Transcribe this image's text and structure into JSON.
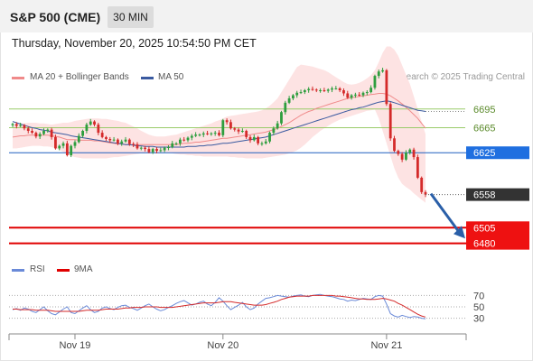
{
  "header": {
    "title": "S&P 500 (CME)",
    "timeframe": "30 MIN",
    "datetime": "Thursday, November 20, 2025 10:54:50 PM CET",
    "credit": "Research © 2025 Trading Central"
  },
  "legend": {
    "ma20_label": "MA 20 + Bollinger Bands",
    "ma50_label": "MA 50",
    "rsi_label": "RSI",
    "ma9_label": "9MA"
  },
  "colors": {
    "up": "#2e9e3e",
    "down": "#d42a2a",
    "ma20": "#f08a8a",
    "bollinger_fill": "#fde3e3",
    "ma50": "#3a5aa0",
    "support_line": "#e00000",
    "current_line": "#2060c0",
    "resistance_line": "#9acb6a",
    "rsi": "#6a8ad8",
    "rsi_ma": "#d42a2a"
  },
  "chart_data": [
    {
      "type": "candlestick",
      "ylim": [
        6465,
        6725
      ],
      "resistance_levels": [
        {
          "label": "6695",
          "value": 6695
        },
        {
          "label": "6665",
          "value": 6665
        }
      ],
      "current_level": {
        "label": "6625",
        "value": 6625
      },
      "last_price": {
        "label": "6558",
        "value": 6558
      },
      "support_levels": [
        {
          "label": "6505",
          "value": 6505
        },
        {
          "label": "6480",
          "value": 6480
        }
      ],
      "x_ticks": [
        "Nov 19",
        "Nov 20",
        "Nov 21"
      ],
      "close": [
        6671,
        6668,
        6669,
        6664,
        6660,
        6657,
        6651,
        6655,
        6660,
        6662,
        6650,
        6632,
        6636,
        6640,
        6621,
        6636,
        6642,
        6652,
        6660,
        6670,
        6675,
        6670,
        6657,
        6650,
        6647,
        6645,
        6646,
        6640,
        6643,
        6646,
        6639,
        6638,
        6632,
        6633,
        6631,
        6626,
        6631,
        6628,
        6629,
        6633,
        6634,
        6640,
        6640,
        6646,
        6645,
        6649,
        6652,
        6654,
        6654,
        6656,
        6655,
        6656,
        6657,
        6653,
        6677,
        6674,
        6664,
        6662,
        6659,
        6660,
        6650,
        6645,
        6650,
        6640,
        6640,
        6643,
        6657,
        6664,
        6672,
        6690,
        6705,
        6712,
        6717,
        6721,
        6722,
        6725,
        6727,
        6726,
        6725,
        6725,
        6724,
        6726,
        6728,
        6728,
        6725,
        6720,
        6713,
        6717,
        6718,
        6717,
        6721,
        6722,
        6729,
        6748,
        6755,
        6757,
        6703,
        6648,
        6628,
        6623,
        6614,
        6625,
        6630,
        6618,
        6585,
        6562,
        6558
      ],
      "ma20": [
        6650,
        6651,
        6652,
        6652,
        6653,
        6653,
        6653,
        6653,
        6653,
        6653,
        6652,
        6651,
        6650,
        6648,
        6646,
        6646,
        6646,
        6645,
        6645,
        6645,
        6645,
        6644,
        6644,
        6643,
        6642,
        6641,
        6640,
        6639,
        6639,
        6638,
        6638,
        6638,
        6638,
        6638,
        6638,
        6638,
        6638,
        6638,
        6638,
        6638,
        6638,
        6638,
        6638,
        6639,
        6640,
        6640,
        6641,
        6642,
        6642,
        6643,
        6644,
        6645,
        6646,
        6647,
        6648,
        6648,
        6649,
        6650,
        6651,
        6652,
        6653,
        6654,
        6655,
        6656,
        6657,
        6658,
        6660,
        6662,
        6664,
        6667,
        6670,
        6673,
        6677,
        6681,
        6685,
        6688,
        6691,
        6693,
        6696,
        6698,
        6700,
        6702,
        6704,
        6706,
        6708,
        6710,
        6712,
        6713,
        6714,
        6715,
        6716,
        6717,
        6718,
        6719,
        6720,
        6720,
        6719,
        6716,
        6712,
        6708,
        6703,
        6698,
        6692,
        6686,
        6680,
        6672,
        6664
      ],
      "bb_upper": [
        6670,
        6671,
        6672,
        6672,
        6673,
        6673,
        6673,
        6672,
        6672,
        6671,
        6670,
        6671,
        6672,
        6673,
        6673,
        6674,
        6676,
        6677,
        6678,
        6679,
        6680,
        6680,
        6680,
        6679,
        6679,
        6678,
        6677,
        6676,
        6674,
        6673,
        6670,
        6667,
        6664,
        6660,
        6657,
        6654,
        6652,
        6651,
        6651,
        6651,
        6652,
        6653,
        6654,
        6656,
        6658,
        6660,
        6662,
        6664,
        6666,
        6668,
        6670,
        6672,
        6675,
        6677,
        6680,
        6683,
        6684,
        6685,
        6686,
        6687,
        6688,
        6689,
        6690,
        6691,
        6693,
        6696,
        6700,
        6706,
        6712,
        6722,
        6732,
        6742,
        6752,
        6762,
        6766,
        6765,
        6764,
        6763,
        6761,
        6759,
        6757,
        6754,
        6750,
        6746,
        6742,
        6738,
        6735,
        6734,
        6735,
        6737,
        6740,
        6744,
        6749,
        6757,
        6770,
        6785,
        6795,
        6795,
        6790,
        6780,
        6765,
        6750,
        6735,
        6715,
        6695,
        6675,
        6655
      ],
      "bb_lower": [
        6632,
        6632,
        6633,
        6634,
        6635,
        6636,
        6636,
        6636,
        6635,
        6635,
        6634,
        6632,
        6630,
        6626,
        6623,
        6620,
        6618,
        6617,
        6616,
        6616,
        6616,
        6616,
        6616,
        6616,
        6616,
        6617,
        6618,
        6618,
        6619,
        6620,
        6621,
        6622,
        6623,
        6624,
        6624,
        6625,
        6625,
        6626,
        6626,
        6626,
        6625,
        6624,
        6623,
        6622,
        6622,
        6621,
        6621,
        6620,
        6620,
        6619,
        6619,
        6619,
        6619,
        6619,
        6619,
        6619,
        6618,
        6618,
        6617,
        6617,
        6616,
        6616,
        6616,
        6616,
        6616,
        6617,
        6618,
        6619,
        6620,
        6621,
        6622,
        6624,
        6626,
        6629,
        6633,
        6638,
        6644,
        6650,
        6655,
        6660,
        6664,
        6668,
        6672,
        6675,
        6678,
        6680,
        6682,
        6684,
        6686,
        6688,
        6690,
        6692,
        6693,
        6694,
        6680,
        6660,
        6640,
        6620,
        6600,
        6585,
        6575,
        6570,
        6566,
        6560,
        6555,
        6550,
        6545
      ],
      "ma50": [
        6675,
        6673,
        6671,
        6669,
        6667,
        6665,
        6664,
        6662,
        6661,
        6660,
        6658,
        6657,
        6656,
        6655,
        6654,
        6652,
        6651,
        6650,
        6649,
        6648,
        6647,
        6646,
        6645,
        6644,
        6643,
        6642,
        6641,
        6640,
        6639,
        6638,
        6638,
        6637,
        6636,
        6636,
        6635,
        6635,
        6635,
        6634,
        6634,
        6634,
        6634,
        6634,
        6634,
        6634,
        6634,
        6635,
        6635,
        6635,
        6636,
        6636,
        6637,
        6637,
        6638,
        6639,
        6640,
        6640,
        6641,
        6642,
        6643,
        6644,
        6645,
        6646,
        6647,
        6648,
        6649,
        6650,
        6652,
        6654,
        6656,
        6658,
        6660,
        6662,
        6664,
        6666,
        6668,
        6670,
        6672,
        6674,
        6676,
        6678,
        6680,
        6682,
        6684,
        6686,
        6688,
        6690,
        6692,
        6694,
        6695,
        6697,
        6698,
        6700,
        6702,
        6704,
        6706,
        6707,
        6708,
        6707,
        6705,
        6703,
        6701,
        6699,
        6697,
        6695,
        6693,
        6692,
        6691
      ]
    },
    {
      "type": "line",
      "ylim": [
        15,
        85
      ],
      "y_ticks": [
        30,
        50,
        70
      ],
      "series": [
        {
          "name": "RSI",
          "values": [
            45,
            47,
            44,
            48,
            46,
            42,
            40,
            45,
            50,
            43,
            38,
            36,
            41,
            46,
            50,
            40,
            38,
            43,
            48,
            52,
            45,
            40,
            42,
            48,
            50,
            47,
            45,
            49,
            52,
            53,
            49,
            47,
            44,
            48,
            52,
            55,
            50,
            46,
            43,
            45,
            49,
            52,
            56,
            59,
            61,
            57,
            53,
            55,
            58,
            60,
            55,
            52,
            58,
            66,
            60,
            52,
            45,
            49,
            53,
            58,
            50,
            45,
            48,
            55,
            60,
            65,
            66,
            68,
            70,
            69,
            68,
            67,
            69,
            70,
            71,
            69,
            68,
            70,
            71,
            72,
            70,
            69,
            68,
            66,
            64,
            63,
            60,
            62,
            61,
            63,
            65,
            64,
            63,
            68,
            70,
            69,
            55,
            38,
            34,
            32,
            35,
            33,
            31,
            33,
            32,
            30,
            29
          ]
        },
        {
          "name": "9MA",
          "values": [
            46,
            46,
            45,
            45,
            45,
            45,
            44,
            44,
            44,
            44,
            43,
            42,
            42,
            42,
            42,
            42,
            42,
            42,
            43,
            44,
            44,
            44,
            44,
            45,
            46,
            46,
            46,
            46,
            47,
            48,
            48,
            49,
            49,
            49,
            50,
            50,
            50,
            50,
            49,
            49,
            49,
            49,
            50,
            51,
            52,
            53,
            54,
            55,
            56,
            57,
            57,
            57,
            57,
            58,
            59,
            59,
            59,
            58,
            57,
            56,
            55,
            54,
            53,
            53,
            53,
            54,
            56,
            58,
            60,
            63,
            65,
            67,
            68,
            69,
            69,
            69,
            69,
            70,
            70,
            70,
            70,
            70,
            70,
            69,
            69,
            68,
            67,
            66,
            65,
            64,
            64,
            63,
            63,
            63,
            64,
            65,
            64,
            62,
            60,
            56,
            53,
            49,
            45,
            41,
            37,
            34,
            32
          ]
        }
      ]
    }
  ]
}
